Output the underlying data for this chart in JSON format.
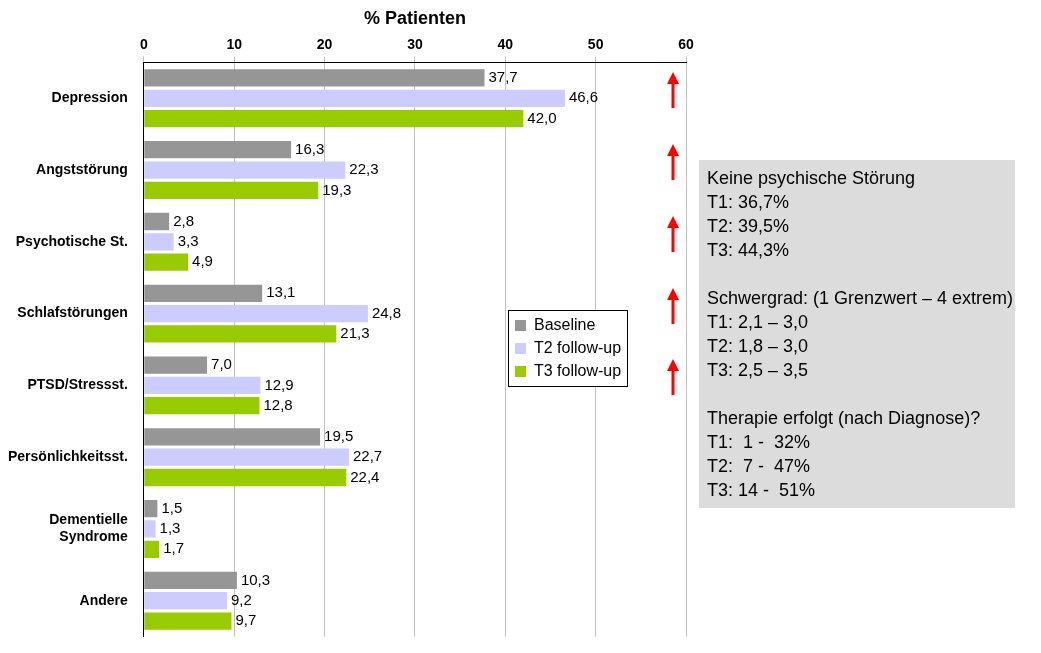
{
  "chart_data": {
    "type": "bar",
    "orientation": "horizontal",
    "xlabel": "% Patienten",
    "categories": [
      "Depression",
      "Angststörung",
      "Psychotische St.",
      "Schlafstörungen",
      "PTSD/Stressst.",
      "Persönlichkeitsst.",
      "Dementielle Syndrome",
      "Andere"
    ],
    "series": [
      {
        "name": "Baseline",
        "color": "#969696",
        "values": [
          37.7,
          16.3,
          2.8,
          13.1,
          7.0,
          19.5,
          1.5,
          10.3
        ],
        "value_labels": [
          "37,7",
          "16,3",
          "2,8",
          "13,1",
          "7,0",
          "19,5",
          "1,5",
          "10,3"
        ]
      },
      {
        "name": "T2 follow-up",
        "color": "#ccccff",
        "values": [
          46.6,
          22.3,
          3.3,
          24.8,
          12.9,
          22.7,
          1.3,
          9.2
        ],
        "value_labels": [
          "46,6",
          "22,3",
          "3,3",
          "24,8",
          "12,9",
          "22,7",
          "1,3",
          "9,2"
        ]
      },
      {
        "name": "T3 follow-up",
        "color": "#99cc00",
        "values": [
          42.0,
          19.3,
          4.9,
          21.3,
          12.8,
          22.4,
          1.7,
          9.7
        ],
        "value_labels": [
          "42,0",
          "19,3",
          "4,9",
          "21,3",
          "12,8",
          "22,4",
          "1,7",
          "9,7"
        ]
      }
    ],
    "xlim": [
      0,
      60
    ],
    "xticks": [
      0,
      10,
      20,
      30,
      40,
      50,
      60
    ],
    "grid": "x",
    "legend": "right",
    "annotations": [
      "Keine psychische Störung\nT1: 36,7%\nT2: 39,5%\nT3: 44,3%",
      "Schwergrad: (1 Grenzwert – 4 extrem)\nT1: 2,1 – 3,0\nT2: 1,8 – 3,0\nT3: 2,5 – 3,5",
      "Therapie erfolgt (nach Diagnose)?\nT1:  1 -  32%\nT2:  7 -  47%\nT3: 14 -  51%"
    ]
  }
}
